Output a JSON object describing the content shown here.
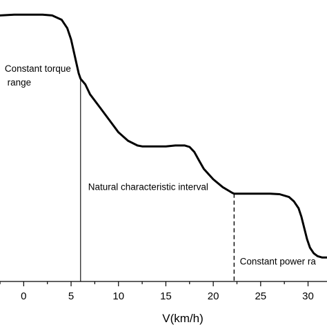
{
  "chart_data": {
    "type": "line",
    "title": "",
    "xlabel": "V(km/h)",
    "ylabel": "",
    "xlim": [
      -2.5,
      32
    ],
    "ylim": [
      0,
      1
    ],
    "grid": false,
    "x_ticks": [
      0,
      5,
      10,
      15,
      20,
      25,
      30
    ],
    "x_tick_labels": [
      "0",
      "5",
      "10",
      "15",
      "20",
      "25",
      "30"
    ],
    "series": [
      {
        "x": [
          -2.5,
          -1.0,
          0.5,
          2.0,
          3.0,
          4.0,
          4.6,
          5.0,
          5.4,
          5.8,
          6.0,
          6.5,
          7.0,
          8.0,
          9.0,
          10.0,
          11.0,
          12.0,
          12.5,
          13.0,
          14.0,
          15.0,
          16.0,
          17.0,
          17.5,
          18.0,
          18.5,
          19.0,
          20.0,
          21.0,
          22.0,
          22.2,
          23.0,
          24.0,
          25.0,
          26.0,
          27.0,
          28.0,
          28.5,
          29.0,
          29.3,
          29.6,
          29.9,
          30.2,
          30.6,
          31.0,
          31.5,
          32.0
        ],
        "y": [
          0.945,
          0.948,
          0.948,
          0.948,
          0.945,
          0.93,
          0.9,
          0.86,
          0.8,
          0.74,
          0.72,
          0.7,
          0.665,
          0.62,
          0.575,
          0.53,
          0.5,
          0.483,
          0.48,
          0.48,
          0.48,
          0.48,
          0.483,
          0.483,
          0.478,
          0.46,
          0.43,
          0.4,
          0.363,
          0.335,
          0.315,
          0.312,
          0.312,
          0.312,
          0.312,
          0.312,
          0.31,
          0.3,
          0.285,
          0.26,
          0.23,
          0.19,
          0.15,
          0.12,
          0.1,
          0.09,
          0.085,
          0.085
        ]
      }
    ],
    "annotations": [
      {
        "text_lines": [
          "Constant torque",
          " range"
        ],
        "x": -2.0,
        "y": 0.745
      },
      {
        "text": "Natural characteristic interval",
        "x": 6.8,
        "y": 0.325
      },
      {
        "text": "Constant power ra",
        "x": 22.8,
        "y": 0.06
      }
    ],
    "reference_lines": [
      {
        "x": 6.0,
        "style": "solid"
      },
      {
        "x": 22.2,
        "style": "dashed"
      }
    ]
  }
}
